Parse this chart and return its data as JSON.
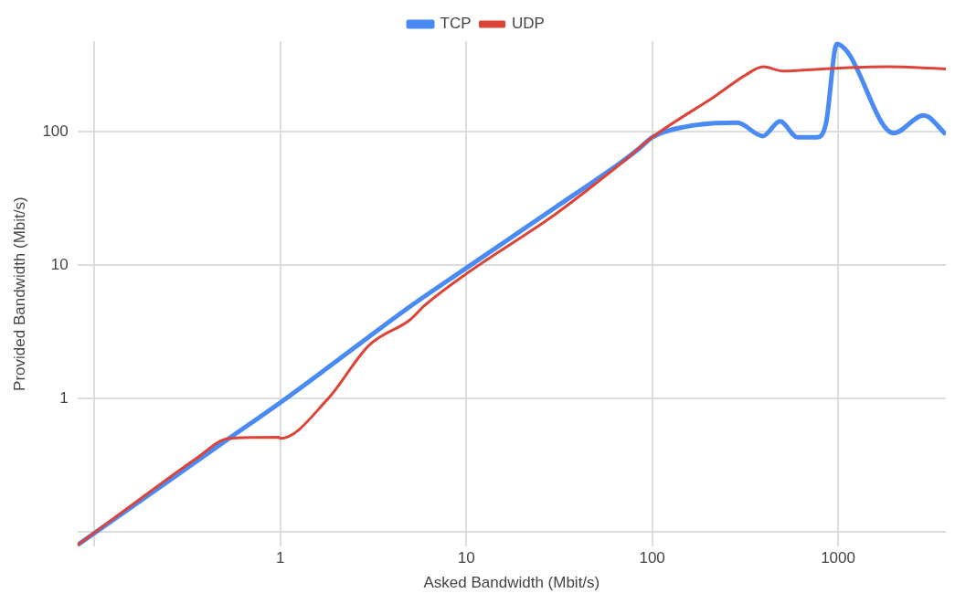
{
  "chart_data": {
    "type": "line",
    "xlabel": "Asked Bandwidth (Mbit/s)",
    "ylabel": "Provided Bandwidth (Mbit/s)",
    "log": "xy",
    "xlim": [
      0.081,
      3800
    ],
    "ylim": [
      0.077,
      480
    ],
    "xticks": [
      {
        "value": 0.1,
        "label": null
      },
      1,
      10,
      100,
      1000
    ],
    "yticks": [
      {
        "value": 0.1,
        "label": null
      },
      1,
      10,
      100
    ],
    "grid": true,
    "legend": "top",
    "marker": "none",
    "line_style": "solid",
    "series": [
      {
        "name": "TCP",
        "color": "#4a8af4",
        "x": [
          0.081,
          0.53,
          1,
          1.8,
          3,
          5,
          10,
          30,
          69,
          86,
          100,
          150,
          287,
          394,
          487,
          605,
          765,
          860,
          985,
          1120,
          1990,
          2890,
          3800
        ],
        "values": [
          0.079,
          0.5,
          0.93,
          1.7,
          2.9,
          4.9,
          9.5,
          27,
          60,
          76,
          91,
          109,
          117,
          93,
          120,
          91,
          91,
          115,
          456,
          400,
          98,
          133,
          96
        ]
      },
      {
        "name": "UDP",
        "color": "#db4437",
        "x": [
          0.081,
          0.2,
          0.35,
          0.53,
          0.98,
          1,
          1.79,
          3,
          5,
          6,
          10,
          30,
          69,
          100,
          220,
          318,
          395,
          505,
          820,
          1840,
          3800
        ],
        "values": [
          0.079,
          0.2,
          0.35,
          0.5,
          0.51,
          0.5,
          0.98,
          2.5,
          3.9,
          5,
          8.6,
          24,
          59,
          91,
          187,
          267,
          308,
          286,
          297,
          308,
          297
        ]
      }
    ]
  }
}
